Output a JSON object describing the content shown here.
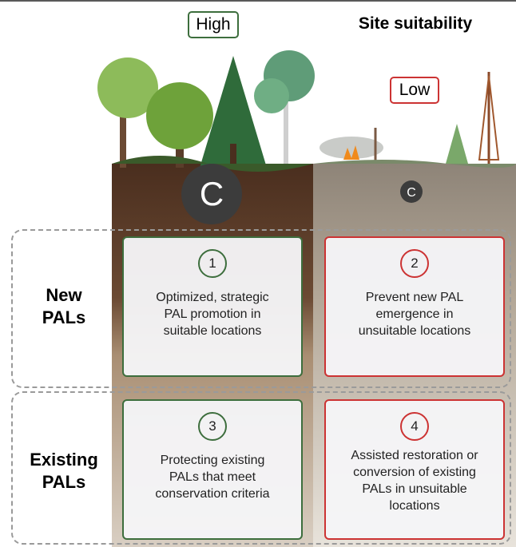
{
  "header": {
    "title": "Site suitability",
    "high_label": "High",
    "low_label": "Low"
  },
  "soil": {
    "carbon_high": "C",
    "carbon_low": "C"
  },
  "rows": [
    {
      "label": [
        "New",
        "PALs"
      ]
    },
    {
      "label": [
        "Existing",
        "PALs"
      ]
    }
  ],
  "cards": [
    {
      "number": "1",
      "lines": [
        "Optimized, strategic",
        "PAL promotion in",
        "suitable locations"
      ]
    },
    {
      "number": "2",
      "lines": [
        "Prevent new PAL",
        "emergence in",
        "unsuitable locations"
      ]
    },
    {
      "number": "3",
      "lines": [
        "Protecting existing",
        "PALs that meet",
        "conservation criteria"
      ]
    },
    {
      "number": "4",
      "lines": [
        "Assisted restoration or",
        "conversion of existing",
        "PALs in unsuitable",
        "locations"
      ]
    }
  ]
}
